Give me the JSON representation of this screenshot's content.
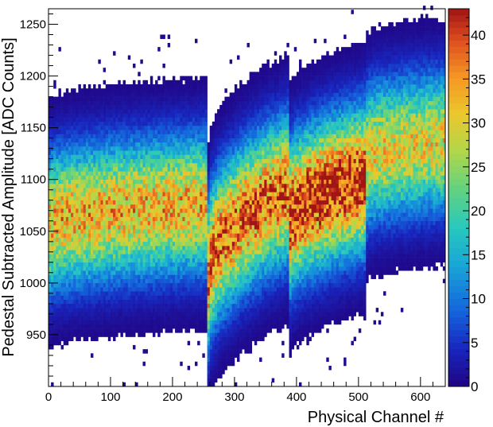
{
  "chart_data": {
    "type": "heatmap",
    "title": "",
    "xlabel": "Physical Channel #",
    "ylabel": "Pedestal Subtracted Amplitude [ADC Counts]",
    "xlim": [
      0,
      640
    ],
    "ylim": [
      900,
      1265
    ],
    "x_ticks": [
      0,
      100,
      200,
      300,
      400,
      500,
      600
    ],
    "y_ticks": [
      950,
      1000,
      1050,
      1100,
      1150,
      1200,
      1250
    ],
    "z_range": [
      0,
      43
    ],
    "z_ticks": [
      0,
      5,
      10,
      15,
      20,
      25,
      30,
      35,
      40
    ],
    "colormap": "rainbow (blue - cyan - green - yellow - red)",
    "grid": false,
    "bands": [
      {
        "x_range": [
          0,
          256
        ],
        "center_start": 1055,
        "center_end": 1075,
        "half_width": 95,
        "peak_count": 33
      },
      {
        "x_range": [
          256,
          385
        ],
        "center_start": 1005,
        "center_end": 1090,
        "half_width": 100,
        "peak_count": 38
      },
      {
        "x_range": [
          385,
          512
        ],
        "center_start": 1055,
        "center_end": 1100,
        "half_width": 100,
        "peak_count": 42
      },
      {
        "x_range": [
          512,
          640
        ],
        "center_start": 1120,
        "center_end": 1135,
        "half_width": 95,
        "peak_count": 30
      }
    ]
  }
}
